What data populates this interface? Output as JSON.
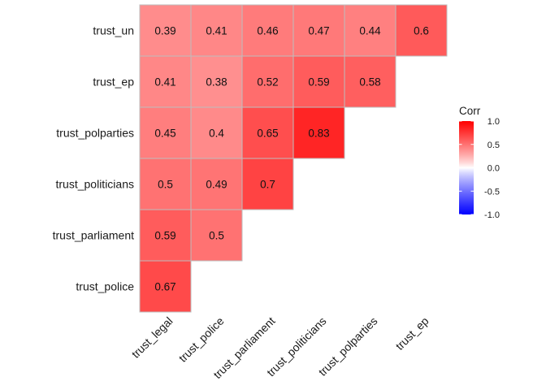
{
  "chart_data": {
    "type": "heatmap",
    "x_labels": [
      "trust_legal",
      "trust_police",
      "trust_parliament",
      "trust_politicians",
      "trust_polparties",
      "trust_ep"
    ],
    "y_labels": [
      "trust_un",
      "trust_ep",
      "trust_polparties",
      "trust_politicians",
      "trust_parliament",
      "trust_police"
    ],
    "cells": [
      {
        "x": "trust_legal",
        "y": "trust_un",
        "value": 0.39,
        "label": "0.39"
      },
      {
        "x": "trust_police",
        "y": "trust_un",
        "value": 0.41,
        "label": "0.41"
      },
      {
        "x": "trust_parliament",
        "y": "trust_un",
        "value": 0.46,
        "label": "0.46"
      },
      {
        "x": "trust_politicians",
        "y": "trust_un",
        "value": 0.47,
        "label": "0.47"
      },
      {
        "x": "trust_polparties",
        "y": "trust_un",
        "value": 0.44,
        "label": "0.44"
      },
      {
        "x": "trust_ep",
        "y": "trust_un",
        "value": 0.6,
        "label": "0.6"
      },
      {
        "x": "trust_legal",
        "y": "trust_ep",
        "value": 0.41,
        "label": "0.41"
      },
      {
        "x": "trust_police",
        "y": "trust_ep",
        "value": 0.38,
        "label": "0.38"
      },
      {
        "x": "trust_parliament",
        "y": "trust_ep",
        "value": 0.52,
        "label": "0.52"
      },
      {
        "x": "trust_politicians",
        "y": "trust_ep",
        "value": 0.59,
        "label": "0.59"
      },
      {
        "x": "trust_polparties",
        "y": "trust_ep",
        "value": 0.58,
        "label": "0.58"
      },
      {
        "x": "trust_legal",
        "y": "trust_polparties",
        "value": 0.45,
        "label": "0.45"
      },
      {
        "x": "trust_police",
        "y": "trust_polparties",
        "value": 0.4,
        "label": "0.4"
      },
      {
        "x": "trust_parliament",
        "y": "trust_polparties",
        "value": 0.65,
        "label": "0.65"
      },
      {
        "x": "trust_politicians",
        "y": "trust_polparties",
        "value": 0.83,
        "label": "0.83"
      },
      {
        "x": "trust_legal",
        "y": "trust_politicians",
        "value": 0.5,
        "label": "0.5"
      },
      {
        "x": "trust_police",
        "y": "trust_politicians",
        "value": 0.49,
        "label": "0.49"
      },
      {
        "x": "trust_parliament",
        "y": "trust_politicians",
        "value": 0.7,
        "label": "0.7"
      },
      {
        "x": "trust_legal",
        "y": "trust_parliament",
        "value": 0.59,
        "label": "0.59"
      },
      {
        "x": "trust_police",
        "y": "trust_parliament",
        "value": 0.5,
        "label": "0.5"
      },
      {
        "x": "trust_legal",
        "y": "trust_police",
        "value": 0.67,
        "label": "0.67"
      }
    ],
    "legend": {
      "title": "Corr",
      "placement": "right",
      "ticks": [
        {
          "value": 1.0,
          "label": "1.0"
        },
        {
          "value": 0.5,
          "label": "0.5"
        },
        {
          "value": 0.0,
          "label": "0.0"
        },
        {
          "value": -0.5,
          "label": "-0.5"
        },
        {
          "value": -1.0,
          "label": "-1.0"
        }
      ],
      "range": [
        -1,
        1
      ]
    },
    "colors": {
      "low": "#0000ff",
      "mid": "#ffffff",
      "high": "#ff0000",
      "cell_border": "#bdbdbd"
    },
    "grid": false
  }
}
